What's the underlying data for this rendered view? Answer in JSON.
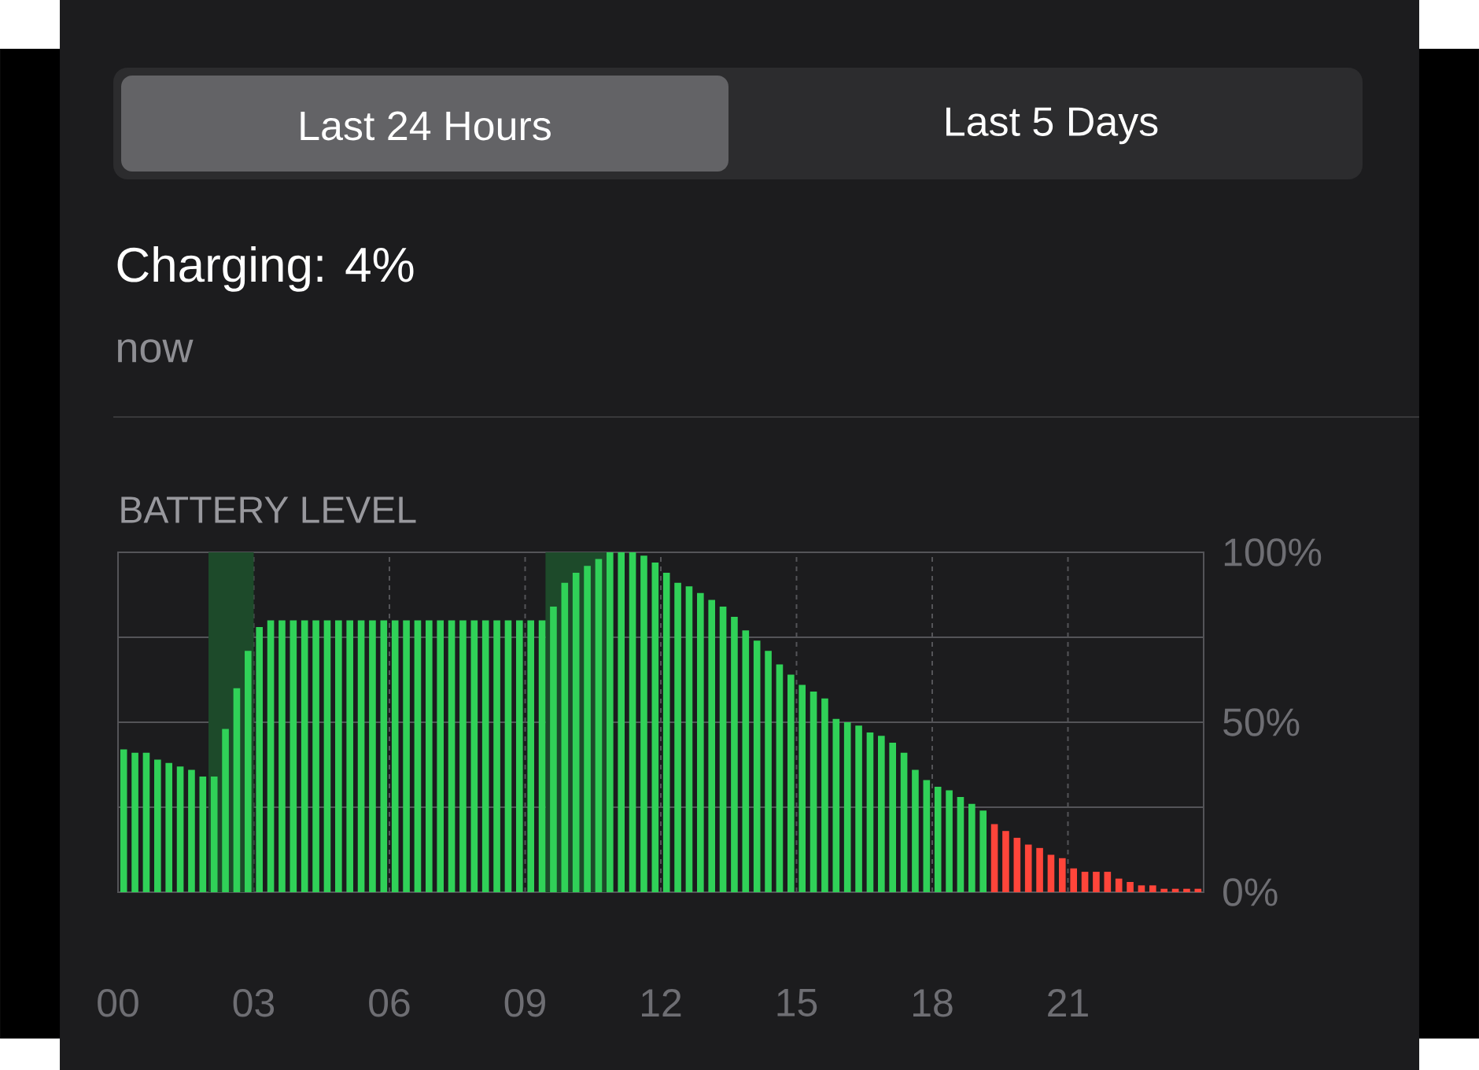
{
  "chart_data": {
    "type": "bar",
    "title": "Charging: 4%",
    "subtitle": "now",
    "annotations": [
      "Last 24 Hours",
      "Last 5 Days",
      "BATTERY LEVEL"
    ],
    "x": [
      0.125,
      0.375,
      0.625,
      0.875,
      1.125,
      1.375,
      1.625,
      1.875,
      2.125,
      2.375,
      2.625,
      2.875,
      3.125,
      3.375,
      3.625,
      3.875,
      4.125,
      4.375,
      4.625,
      4.875,
      5.125,
      5.375,
      5.625,
      5.875,
      6.125,
      6.375,
      6.625,
      6.875,
      7.125,
      7.375,
      7.625,
      7.875,
      8.125,
      8.375,
      8.625,
      8.875,
      9.125,
      9.375,
      9.625,
      9.875,
      10.125,
      10.375,
      10.625,
      10.875,
      11.125,
      11.375,
      11.625,
      11.875,
      12.125,
      12.375,
      12.625,
      12.875,
      13.125,
      13.375,
      13.625,
      13.875,
      14.125,
      14.375,
      14.625,
      14.875,
      15.125,
      15.375,
      15.625,
      15.875,
      16.125,
      16.375,
      16.625,
      16.875,
      17.125,
      17.375,
      17.625,
      17.875,
      18.125,
      18.375,
      18.625,
      18.875,
      19.125,
      19.375,
      19.625,
      19.875,
      20.125,
      20.375,
      20.625,
      20.875,
      21.125,
      21.375,
      21.625,
      21.875,
      22.125,
      22.375,
      22.625,
      22.875,
      23.125,
      23.375,
      23.625,
      23.875
    ],
    "values": [
      42,
      41,
      41,
      39,
      38,
      37,
      36,
      34,
      34,
      48,
      60,
      71,
      78,
      80,
      80,
      80,
      80,
      80,
      80,
      80,
      80,
      80,
      80,
      80,
      80,
      80,
      80,
      80,
      80,
      80,
      80,
      80,
      80,
      80,
      80,
      80,
      80,
      80,
      84,
      91,
      94,
      96,
      98,
      100,
      100,
      100,
      99,
      97,
      94,
      91,
      90,
      88,
      86,
      84,
      81,
      77,
      74,
      71,
      67,
      64,
      61,
      59,
      57,
      51,
      50,
      49,
      47,
      46,
      44,
      41,
      36,
      33,
      31,
      30,
      28,
      26,
      24,
      20,
      18,
      16,
      14,
      13,
      11,
      10,
      7,
      6,
      6,
      6,
      4,
      3,
      2,
      2,
      1,
      1,
      1,
      1
    ],
    "colors": [
      "#30d158",
      "#30d158",
      "#30d158",
      "#30d158",
      "#30d158",
      "#30d158",
      "#30d158",
      "#30d158",
      "#30d158",
      "#30d158",
      "#30d158",
      "#30d158",
      "#30d158",
      "#30d158",
      "#30d158",
      "#30d158",
      "#30d158",
      "#30d158",
      "#30d158",
      "#30d158",
      "#30d158",
      "#30d158",
      "#30d158",
      "#30d158",
      "#30d158",
      "#30d158",
      "#30d158",
      "#30d158",
      "#30d158",
      "#30d158",
      "#30d158",
      "#30d158",
      "#30d158",
      "#30d158",
      "#30d158",
      "#30d158",
      "#30d158",
      "#30d158",
      "#30d158",
      "#30d158",
      "#30d158",
      "#30d158",
      "#30d158",
      "#30d158",
      "#30d158",
      "#30d158",
      "#30d158",
      "#30d158",
      "#30d158",
      "#30d158",
      "#30d158",
      "#30d158",
      "#30d158",
      "#30d158",
      "#30d158",
      "#30d158",
      "#30d158",
      "#30d158",
      "#30d158",
      "#30d158",
      "#30d158",
      "#30d158",
      "#30d158",
      "#30d158",
      "#30d158",
      "#30d158",
      "#30d158",
      "#30d158",
      "#30d158",
      "#30d158",
      "#30d158",
      "#30d158",
      "#30d158",
      "#30d158",
      "#30d158",
      "#30d158",
      "#30d158",
      "#ff453a",
      "#ff453a",
      "#ff453a",
      "#ff453a",
      "#ff453a",
      "#ff453a",
      "#ff453a",
      "#ff453a",
      "#ff453a",
      "#ff453a",
      "#ff453a",
      "#ff453a",
      "#ff453a",
      "#ff453a",
      "#ff453a",
      "#ff453a",
      "#ff453a",
      "#ff453a",
      "#ff453a"
    ],
    "xlim": [
      0,
      24
    ],
    "xticks": [
      {
        "value": 0,
        "label": "00"
      },
      {
        "value": 3,
        "label": "03"
      },
      {
        "value": 6,
        "label": "06"
      },
      {
        "value": 9,
        "label": "09"
      },
      {
        "value": 12,
        "label": "12"
      },
      {
        "value": 15,
        "label": "15"
      },
      {
        "value": 18,
        "label": "18"
      },
      {
        "value": 21,
        "label": "21"
      }
    ],
    "ylim": [
      0,
      100
    ],
    "yticks": [
      {
        "value": 0,
        "label": "0%"
      },
      {
        "value": 25,
        "label": null
      },
      {
        "value": 50,
        "label": "50%"
      },
      {
        "value": 75,
        "label": null
      },
      {
        "value": 100,
        "label": "100%"
      }
    ],
    "bands": [
      {
        "axis": "x",
        "from": 2,
        "to": 3,
        "color": "#1d4a2a"
      },
      {
        "axis": "x",
        "from": 9.45,
        "to": 10.85,
        "color": "#1d4a2a"
      }
    ],
    "grid": true
  }
}
